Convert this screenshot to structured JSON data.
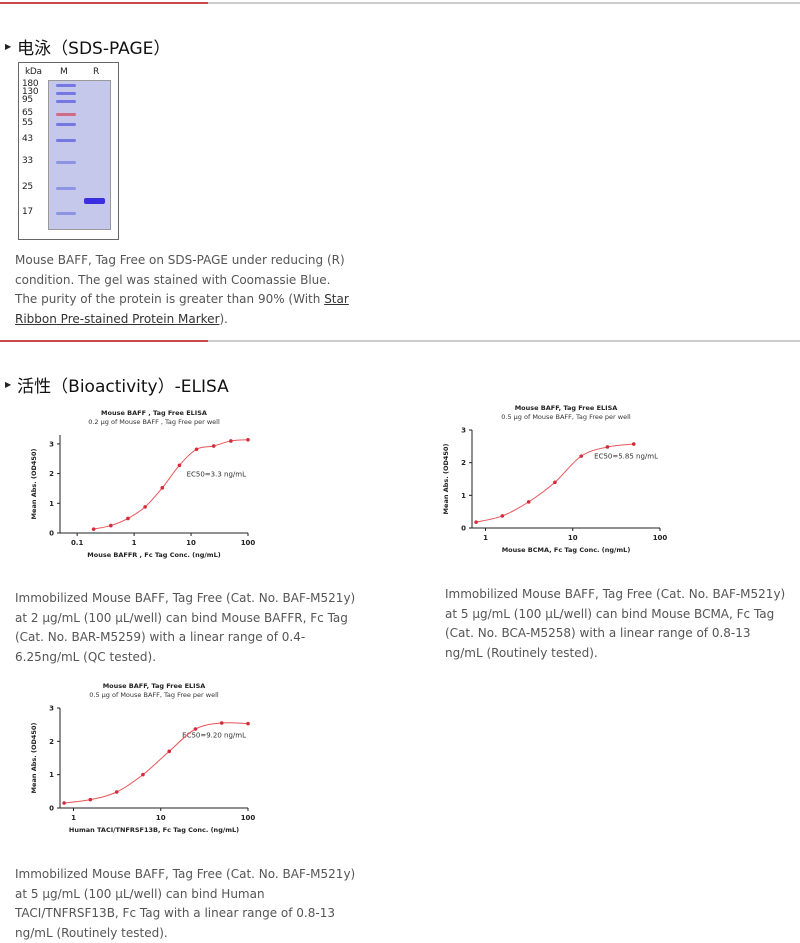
{
  "section1": {
    "heading": "电泳（SDS-PAGE）",
    "gel": {
      "unit_label": "kDa",
      "lane_labels": [
        "M",
        "R"
      ],
      "markers": [
        "180",
        "130",
        "95",
        "65",
        "55",
        "43",
        "33",
        "25",
        "17"
      ]
    },
    "caption_text": "Mouse BAFF, Tag Free on SDS-PAGE under reducing (R) condition. The gel was stained with Coomassie Blue. The purity of the protein is greater than 90% (With ",
    "caption_link": "Star Ribbon Pre-stained Protein Marker",
    "caption_end": ")."
  },
  "section2": {
    "heading": "活性（Bioactivity）-ELISA",
    "captions": [
      "Immobilized Mouse BAFF, Tag Free (Cat. No. BAF-M521y) at 2 μg/mL (100 μL/well) can bind Mouse BAFFR, Fc Tag (Cat. No. BAR-M5259) with a linear range of 0.4-6.25ng/mL (QC tested).",
      "Immobilized Mouse BAFF, Tag Free (Cat. No. BAF-M521y) at 5 μg/mL (100 μL/well) can bind Mouse BCMA, Fc Tag (Cat. No. BCA-M5258) with a linear range of 0.8-13 ng/mL (Routinely tested).",
      "Immobilized Mouse BAFF, Tag Free (Cat. No. BAF-M521y) at 5 μg/mL (100 μL/well) can bind Human TACI/TNFRSF13B, Fc Tag with a linear range of 0.8-13 ng/mL (Routinely tested)."
    ]
  },
  "colors": {
    "accent": "#c9474a",
    "curve": "#e8545a",
    "point": "#d42a3a"
  },
  "chart_data": [
    {
      "type": "line",
      "title": "Mouse BAFF , Tag Free ELISA",
      "subtitle": "0.2 μg of Mouse BAFF , Tag Free per well",
      "xlabel": "Mouse BAFFR , Fc Tag  Conc. (ng/mL)",
      "ylabel": "Mean Abs. (OD450)",
      "x_scale": "log",
      "xlim": [
        0.05,
        100
      ],
      "ylim": [
        0,
        3.3
      ],
      "xticks": [
        "0.1",
        "1",
        "10",
        "100"
      ],
      "yticks": [
        "0",
        "1",
        "2",
        "3"
      ],
      "annotation": "EC50=3.3 ng/mL",
      "x": [
        0.195,
        0.39,
        0.78,
        1.56,
        3.125,
        6.25,
        12.5,
        25,
        50,
        100
      ],
      "y": [
        0.13,
        0.25,
        0.49,
        0.88,
        1.52,
        2.28,
        2.82,
        2.93,
        3.1,
        3.14
      ]
    },
    {
      "type": "line",
      "title": "Mouse BAFF, Tag Free ELISA",
      "subtitle": "0.5 μg of Mouse BAFF, Tag Free per well",
      "xlabel": "Mouse BCMA, Fc Tag Conc. (ng/mL)",
      "ylabel": "Mean Abs. (OD450)",
      "x_scale": "log",
      "xlim": [
        0.7,
        100
      ],
      "ylim": [
        0,
        3
      ],
      "xticks": [
        "1",
        "10",
        "100"
      ],
      "yticks": [
        "0",
        "1",
        "2",
        "3"
      ],
      "annotation": "EC50=5.85 ng/mL",
      "x": [
        0.78,
        1.56,
        3.125,
        6.25,
        12.5,
        25,
        50
      ],
      "y": [
        0.18,
        0.37,
        0.8,
        1.4,
        2.2,
        2.48,
        2.57
      ]
    },
    {
      "type": "line",
      "title": "Mouse BAFF, Tag Free ELISA",
      "subtitle": "0.5 μg of Mouse BAFF, Tag Free per well",
      "xlabel": "Human TACI/TNFRSF13B, Fc Tag Conc. (ng/mL)",
      "ylabel": "Mean Abs. (OD450)",
      "x_scale": "log",
      "xlim": [
        0.7,
        100
      ],
      "ylim": [
        0,
        3
      ],
      "xticks": [
        "1",
        "10",
        "100"
      ],
      "yticks": [
        "0",
        "1",
        "2",
        "3"
      ],
      "annotation": "EC50=9.20 ng/mL",
      "x": [
        0.78,
        1.56,
        3.125,
        6.25,
        12.5,
        25,
        50,
        100
      ],
      "y": [
        0.15,
        0.25,
        0.48,
        1.0,
        1.7,
        2.37,
        2.55,
        2.53
      ]
    }
  ]
}
